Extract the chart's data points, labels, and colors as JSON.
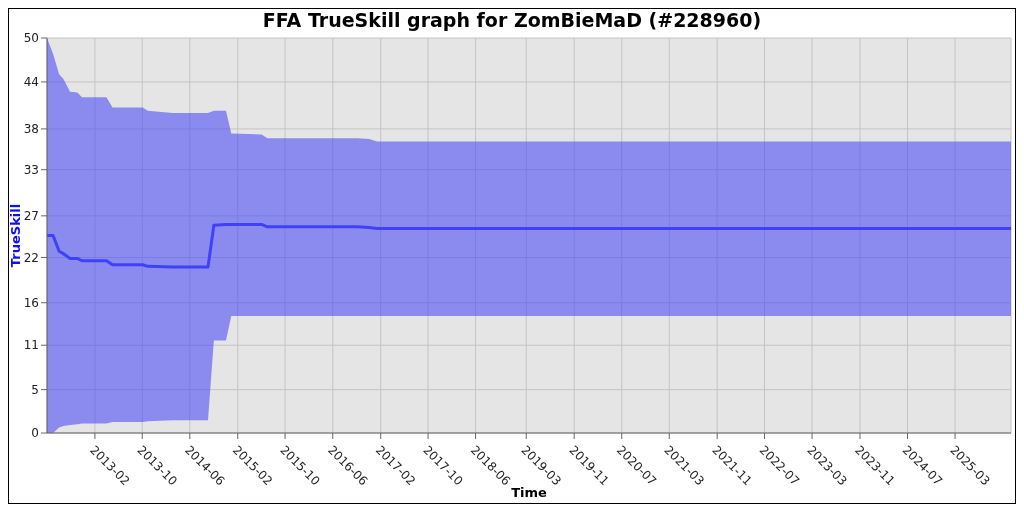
{
  "chart_data": {
    "type": "line",
    "title": "FFA TrueSkill graph for ZomBieMaD (#228960)",
    "xlabel": "Time",
    "ylabel": "TrueSkill",
    "x": [
      "2012-06-15",
      "2012-07-16",
      "2012-08-16",
      "2012-09-07",
      "2012-10-11",
      "2012-11-17",
      "2012-12-11",
      "2013-04-15",
      "2013-05-16",
      "2013-10-17",
      "2013-11-12",
      "2014-03-19",
      "2014-09-16",
      "2014-10-16",
      "2014-12-17",
      "2015-01-13",
      "2015-06-17",
      "2015-07-17",
      "2016-10-18",
      "2016-12-18",
      "2017-01-28",
      "2025-12-12"
    ],
    "series": [
      {
        "color": "#4040f8",
        "values": [
          25.0,
          25.0,
          23.0,
          22.7,
          22.1,
          22.1,
          21.8,
          21.8,
          21.3,
          21.3,
          21.1,
          21.0,
          21.0,
          26.3,
          26.4,
          26.4,
          26.4,
          26.1,
          26.1,
          26.0,
          25.9,
          25.9
        ],
        "lower": [
          0,
          0,
          0.7,
          0.9,
          1.0,
          1.1,
          1.2,
          1.2,
          1.4,
          1.4,
          1.5,
          1.6,
          1.6,
          11.7,
          11.7,
          14.8,
          14.8,
          14.8,
          14.8,
          14.8,
          14.8,
          14.8
        ],
        "upper": [
          50,
          48,
          45.4,
          44.8,
          43.2,
          43.1,
          42.5,
          42.5,
          41.2,
          41.2,
          40.8,
          40.5,
          40.5,
          40.8,
          40.8,
          37.9,
          37.8,
          37.3,
          37.3,
          37.2,
          36.9,
          36.9
        ]
      }
    ],
    "xlim": [
      "2012-06-15",
      "2025-12-12"
    ],
    "xticks": [
      {
        "value": "2013-02-15",
        "label": "2013-02"
      },
      {
        "value": "2013-10-15",
        "label": "2013-10"
      },
      {
        "value": "2014-06-15",
        "label": "2014-06"
      },
      {
        "value": "2015-02-15",
        "label": "2015-02"
      },
      {
        "value": "2015-10-15",
        "label": "2015-10"
      },
      {
        "value": "2016-06-15",
        "label": "2016-06"
      },
      {
        "value": "2017-02-15",
        "label": "2017-02"
      },
      {
        "value": "2017-10-15",
        "label": "2017-10"
      },
      {
        "value": "2018-06-15",
        "label": "2018-06"
      },
      {
        "value": "2019-03-01",
        "label": "2019-03"
      },
      {
        "value": "2019-11-01",
        "label": "2019-11"
      },
      {
        "value": "2020-07-01",
        "label": "2020-07"
      },
      {
        "value": "2021-03-01",
        "label": "2021-03"
      },
      {
        "value": "2021-11-01",
        "label": "2021-11"
      },
      {
        "value": "2022-07-01",
        "label": "2022-07"
      },
      {
        "value": "2023-03-01",
        "label": "2023-03"
      },
      {
        "value": "2023-11-01",
        "label": "2023-11"
      },
      {
        "value": "2024-07-01",
        "label": "2024-07"
      },
      {
        "value": "2025-03-01",
        "label": "2025-03"
      }
    ],
    "ylim": [
      0,
      50
    ],
    "yticks": [
      0,
      {
        "value": 5.49,
        "label": "5"
      },
      {
        "value": 11.11,
        "label": "11"
      },
      {
        "value": 16.49,
        "label": "16"
      },
      {
        "value": 22.22,
        "label": "22"
      },
      {
        "value": 27.49,
        "label": "27"
      },
      {
        "value": 33.33,
        "label": "33"
      },
      {
        "value": 38.49,
        "label": "38"
      },
      {
        "value": 44.44,
        "label": "44"
      },
      50
    ],
    "grid": true,
    "marker": "none"
  }
}
